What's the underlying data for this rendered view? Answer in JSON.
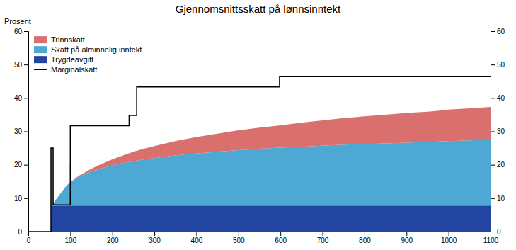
{
  "chart_data": {
    "type": "area",
    "title": "Gjennomsnittsskatt på lønnsinntekt",
    "ylabel": "Prosent",
    "stacked": true,
    "grid": false,
    "legend": "upper left",
    "xlim": [
      0,
      1100
    ],
    "xticks": [
      0,
      100,
      200,
      300,
      400,
      500,
      600,
      700,
      800,
      900,
      1000,
      1100
    ],
    "ylim": [
      0,
      60
    ],
    "yticks": [
      0,
      10,
      20,
      30,
      40,
      50,
      60
    ],
    "y2lim": [
      0,
      60
    ],
    "y2ticks": [
      0,
      10,
      20,
      30,
      40,
      50,
      60
    ],
    "x": [
      0,
      54,
      55,
      60,
      70,
      80,
      90,
      100,
      120,
      150,
      175,
      200,
      225,
      250,
      275,
      300,
      350,
      400,
      450,
      500,
      550,
      600,
      650,
      700,
      750,
      800,
      850,
      900,
      950,
      970,
      1000,
      1050,
      1100
    ],
    "series": [
      {
        "name": "Trygdeavgift",
        "color": "#2145a0",
        "values": [
          0,
          0,
          7.8,
          7.8,
          7.8,
          7.8,
          7.8,
          7.8,
          7.8,
          7.8,
          7.8,
          7.8,
          7.8,
          7.8,
          7.8,
          7.8,
          7.8,
          7.8,
          7.8,
          7.8,
          7.8,
          7.8,
          7.8,
          7.8,
          7.8,
          7.8,
          7.8,
          7.8,
          7.8,
          7.8,
          7.8,
          7.8,
          7.8
        ]
      },
      {
        "name": "Skatt på alminnelig inntekt",
        "color": "#4ea8d4",
        "values": [
          0,
          0,
          0.3,
          0.8,
          2.5,
          4.2,
          5.8,
          7.0,
          8.6,
          10.2,
          11.2,
          12.0,
          12.7,
          13.3,
          13.8,
          14.2,
          15.0,
          15.6,
          16.1,
          16.6,
          17.0,
          17.3,
          17.6,
          17.9,
          18.2,
          18.4,
          18.6,
          18.8,
          19.0,
          19.1,
          19.3,
          19.5,
          19.7
        ]
      },
      {
        "name": "Trinnskatt",
        "color": "#d9706e",
        "values": [
          0,
          0,
          0,
          0,
          0,
          0,
          0,
          0,
          0.3,
          0.8,
          1.3,
          1.8,
          2.3,
          2.8,
          3.2,
          3.6,
          4.3,
          4.9,
          5.4,
          5.9,
          6.3,
          6.7,
          7.2,
          7.6,
          8.0,
          8.3,
          8.6,
          8.9,
          9.1,
          9.2,
          9.4,
          9.6,
          9.8
        ]
      },
      {
        "name": "Marginalskatt",
        "type": "line",
        "color": "#000000",
        "x": [
          0,
          54,
          54,
          59.0,
          59.0,
          99.9,
          99.9,
          100,
          100,
          240,
          240,
          258,
          258,
          598,
          598,
          964,
          964,
          1100
        ],
        "values": [
          0,
          0,
          25.0,
          25.0,
          8.0,
          8.0,
          20.0,
          20.0,
          31.7,
          31.7,
          34.8,
          34.8,
          43.3,
          43.3,
          46.4,
          46.4,
          46.4,
          46.4
        ]
      }
    ]
  }
}
